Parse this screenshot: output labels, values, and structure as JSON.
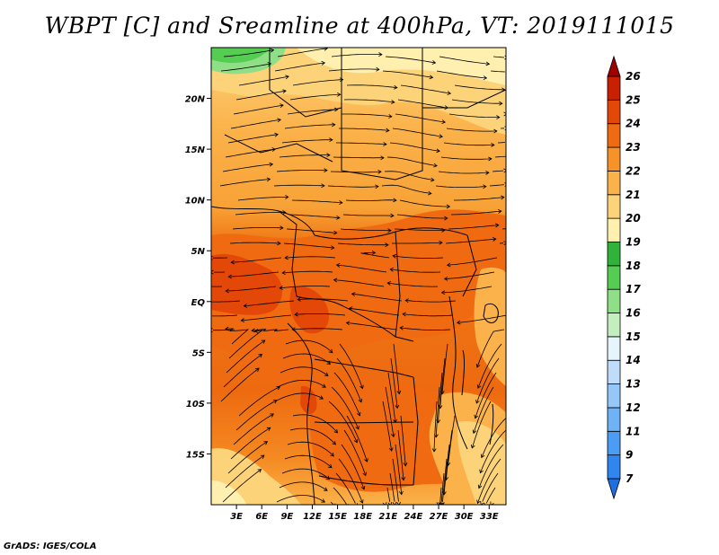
{
  "title": "WBPT [C] and Sreamline at 400hPa, VT: 2019111015",
  "credit": "GrADS: IGES/COLA",
  "map": {
    "lon_range": [
      0,
      35
    ],
    "lat_range": [
      -20,
      25
    ],
    "lon_ticks": [
      {
        "value": 3,
        "label": "3E"
      },
      {
        "value": 6,
        "label": "6E"
      },
      {
        "value": 9,
        "label": "9E"
      },
      {
        "value": 12,
        "label": "12E"
      },
      {
        "value": 15,
        "label": "15E"
      },
      {
        "value": 18,
        "label": "18E"
      },
      {
        "value": 21,
        "label": "21E"
      },
      {
        "value": 24,
        "label": "24E"
      },
      {
        "value": 27,
        "label": "27E"
      },
      {
        "value": 30,
        "label": "30E"
      },
      {
        "value": 33,
        "label": "33E"
      }
    ],
    "lat_ticks": [
      {
        "value": 20,
        "label": "20N"
      },
      {
        "value": 15,
        "label": "15N"
      },
      {
        "value": 10,
        "label": "10N"
      },
      {
        "value": 5,
        "label": "5N"
      },
      {
        "value": 0,
        "label": "EQ"
      },
      {
        "value": -5,
        "label": "5S"
      },
      {
        "value": -10,
        "label": "10S"
      },
      {
        "value": -15,
        "label": "15S"
      }
    ]
  },
  "colorbar": {
    "labels": [
      "7",
      "9",
      "11",
      "12",
      "13",
      "14",
      "15",
      "16",
      "17",
      "18",
      "19",
      "20",
      "21",
      "22",
      "23",
      "24",
      "25",
      "26"
    ],
    "colors": [
      "#1e6fe0",
      "#2f86f0",
      "#4a9cf5",
      "#6fb2f7",
      "#95c8f9",
      "#bfddfb",
      "#e6f4fc",
      "#c5eec0",
      "#8fdf86",
      "#55cc52",
      "#2fb33b",
      "#fff0b0",
      "#fdd37a",
      "#fbb24a",
      "#f79228",
      "#f06a12",
      "#e34808",
      "#c82000",
      "#a00000"
    ]
  }
}
